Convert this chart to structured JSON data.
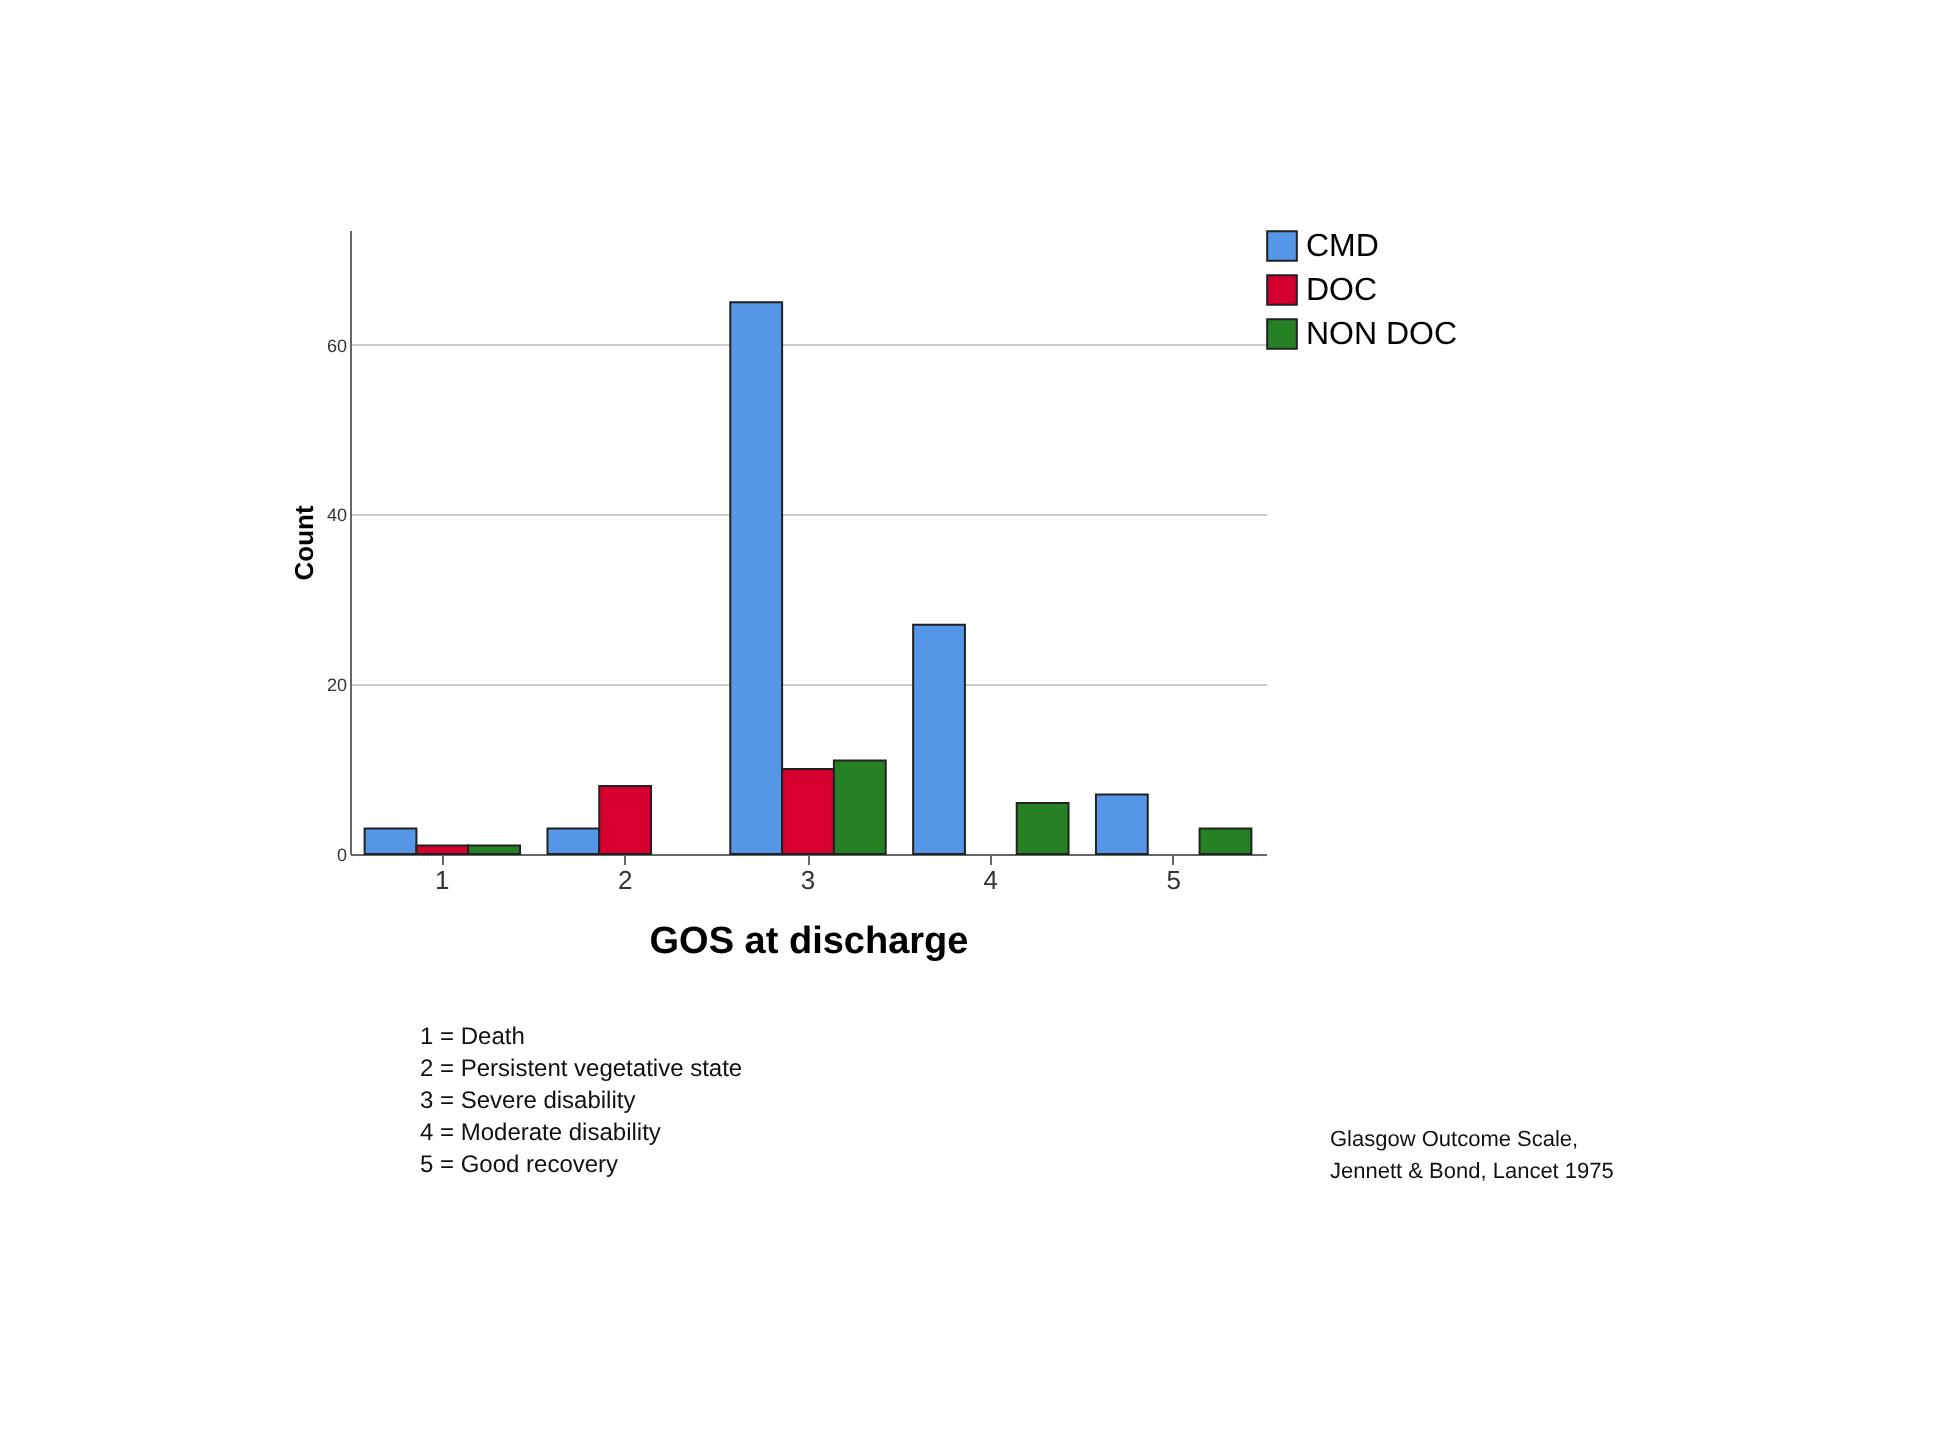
{
  "chart_data": {
    "type": "bar",
    "xlabel": "GOS at discharge",
    "ylabel": "Count",
    "categories": [
      "1",
      "2",
      "3",
      "4",
      "5"
    ],
    "series": [
      {
        "name": "CMD",
        "color": "#5596e6",
        "values": [
          3,
          3,
          65,
          27,
          7
        ]
      },
      {
        "name": "DOC",
        "color": "#d6002f",
        "values": [
          1,
          8,
          10,
          null,
          null
        ]
      },
      {
        "name": "NON DOC",
        "color": "#268125",
        "values": [
          1,
          null,
          11,
          6,
          3
        ]
      }
    ],
    "ylim": [
      0,
      73.5
    ],
    "yticks": [
      0,
      20,
      40,
      60
    ],
    "grid": "y",
    "legend": "right",
    "annotations": [
      "1 = Death",
      "2 = Persistent vegetative state",
      "3 = Severe disability",
      "4 = Moderate disability",
      "5 = Good recovery",
      "Glasgow Outcome Scale,\nJennett & Bond, Lancet 1975"
    ]
  }
}
